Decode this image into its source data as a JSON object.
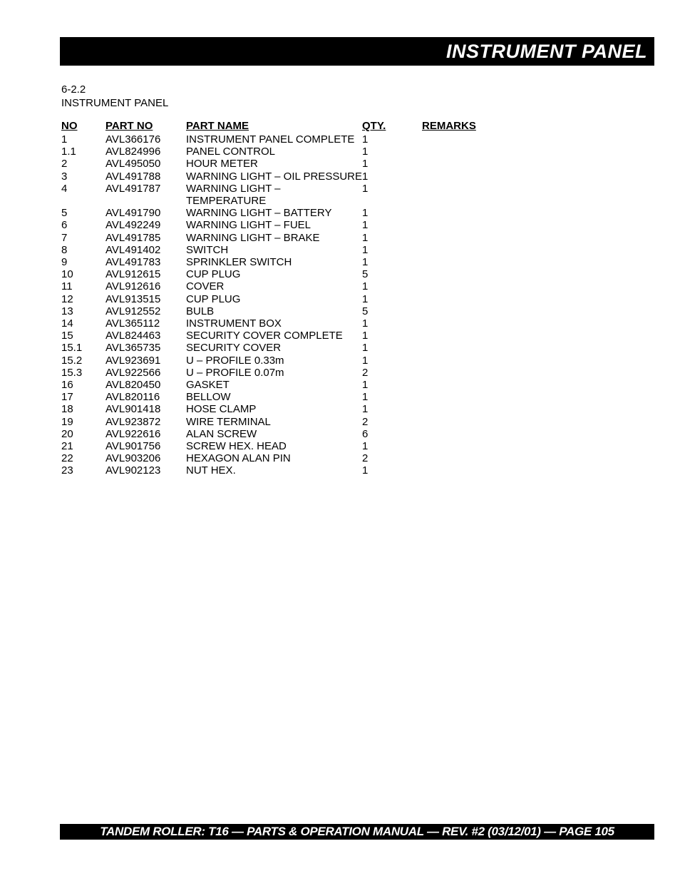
{
  "header": {
    "title": "INSTRUMENT PANEL"
  },
  "section": {
    "code": "6-2.2",
    "name": "INSTRUMENT PANEL"
  },
  "table": {
    "columns": {
      "no": "NO",
      "part_no": "PART NO",
      "part_name": "PART NAME",
      "qty": "QTY.",
      "remarks": "REMARKS"
    },
    "rows": [
      {
        "no": "1",
        "part_no": "AVL366176",
        "part_name": "INSTRUMENT PANEL COMPLETE",
        "qty": "1",
        "remarks": ""
      },
      {
        "no": "1.1",
        "part_no": "AVL824996",
        "part_name": "PANEL CONTROL",
        "qty": "1",
        "remarks": ""
      },
      {
        "no": "2",
        "part_no": "AVL495050",
        "part_name": "HOUR METER",
        "qty": "1",
        "remarks": ""
      },
      {
        "no": "3",
        "part_no": "AVL491788",
        "part_name": "WARNING LIGHT – OIL PRESSURE",
        "qty": "1",
        "remarks": ""
      },
      {
        "no": "4",
        "part_no": "AVL491787",
        "part_name": "WARNING LIGHT – TEMPERATURE",
        "qty": "1",
        "remarks": ""
      },
      {
        "no": "5",
        "part_no": "AVL491790",
        "part_name": "WARNING LIGHT – BATTERY",
        "qty": "1",
        "remarks": ""
      },
      {
        "no": "6",
        "part_no": "AVL492249",
        "part_name": "WARNING LIGHT – FUEL",
        "qty": "1",
        "remarks": ""
      },
      {
        "no": "7",
        "part_no": "AVL491785",
        "part_name": "WARNING LIGHT – BRAKE",
        "qty": "1",
        "remarks": ""
      },
      {
        "no": "8",
        "part_no": "AVL491402",
        "part_name": "SWITCH",
        "qty": "1",
        "remarks": ""
      },
      {
        "no": "9",
        "part_no": "AVL491783",
        "part_name": "SPRINKLER SWITCH",
        "qty": "1",
        "remarks": ""
      },
      {
        "no": "10",
        "part_no": "AVL912615",
        "part_name": "CUP PLUG",
        "qty": "5",
        "remarks": ""
      },
      {
        "no": "11",
        "part_no": "AVL912616",
        "part_name": "COVER",
        "qty": "1",
        "remarks": ""
      },
      {
        "no": "12",
        "part_no": "AVL913515",
        "part_name": "CUP PLUG",
        "qty": "1",
        "remarks": ""
      },
      {
        "no": "13",
        "part_no": "AVL912552",
        "part_name": "BULB",
        "qty": "5",
        "remarks": ""
      },
      {
        "no": "14",
        "part_no": "AVL365112",
        "part_name": "INSTRUMENT BOX",
        "qty": "1",
        "remarks": ""
      },
      {
        "no": "15",
        "part_no": "AVL824463",
        "part_name": "SECURITY COVER COMPLETE",
        "qty": "1",
        "remarks": ""
      },
      {
        "no": "15.1",
        "part_no": "AVL365735",
        "part_name": "SECURITY COVER",
        "qty": "1",
        "remarks": ""
      },
      {
        "no": "15.2",
        "part_no": "AVL923691",
        "part_name": "U – PROFILE 0.33m",
        "qty": "1",
        "remarks": ""
      },
      {
        "no": "15.3",
        "part_no": "AVL922566",
        "part_name": "U – PROFILE 0.07m",
        "qty": "2",
        "remarks": ""
      },
      {
        "no": "16",
        "part_no": "AVL820450",
        "part_name": "GASKET",
        "qty": "1",
        "remarks": ""
      },
      {
        "no": "17",
        "part_no": "AVL820116",
        "part_name": "BELLOW",
        "qty": "1",
        "remarks": ""
      },
      {
        "no": "18",
        "part_no": "AVL901418",
        "part_name": "HOSE CLAMP",
        "qty": "1",
        "remarks": ""
      },
      {
        "no": "19",
        "part_no": "AVL923872",
        "part_name": "WIRE TERMINAL",
        "qty": "2",
        "remarks": ""
      },
      {
        "no": "20",
        "part_no": "AVL922616",
        "part_name": "ALAN SCREW",
        "qty": "6",
        "remarks": ""
      },
      {
        "no": "21",
        "part_no": "AVL901756",
        "part_name": "SCREW HEX. HEAD",
        "qty": "1",
        "remarks": ""
      },
      {
        "no": "22",
        "part_no": "AVL903206",
        "part_name": "HEXAGON ALAN PIN",
        "qty": "2",
        "remarks": ""
      },
      {
        "no": "23",
        "part_no": "AVL902123",
        "part_name": "NUT HEX.",
        "qty": "1",
        "remarks": ""
      }
    ]
  },
  "footer": {
    "text": "TANDEM ROLLER: T16 — PARTS & OPERATION MANUAL — REV. #2 (03/12/01) — PAGE 105"
  },
  "styles": {
    "page_bg": "#ffffff",
    "bar_bg": "#000000",
    "bar_text": "#ffffff",
    "body_text": "#000000",
    "header_fontsize": 27,
    "body_fontsize": 15,
    "footer_fontsize": 17
  }
}
